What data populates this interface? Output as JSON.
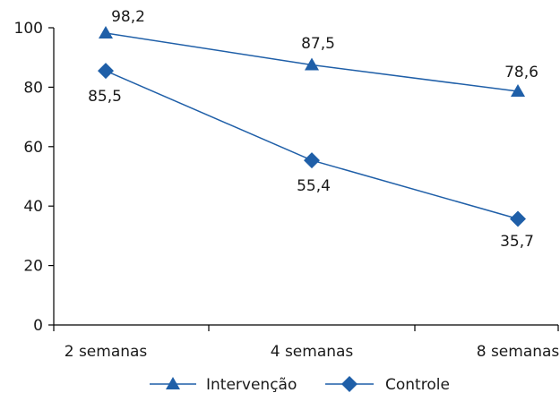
{
  "chart_data": {
    "type": "line",
    "title": "",
    "xlabel": "",
    "ylabel": "",
    "categories": [
      "2 semanas",
      "4 semanas",
      "8 semanas"
    ],
    "ylim": [
      0,
      100
    ],
    "yticks": [
      "0",
      "20",
      "40",
      "60",
      "80",
      "100"
    ],
    "grid": false,
    "legend_position": "bottom-center",
    "series": [
      {
        "name": "Intervenção",
        "marker": "triangle",
        "values": [
          98.2,
          87.5,
          78.6
        ],
        "labels": [
          "98,2",
          "87,5",
          "78,6"
        ]
      },
      {
        "name": "Controle",
        "marker": "diamond",
        "values": [
          85.5,
          55.4,
          35.7
        ],
        "labels": [
          "85,5",
          "55,4",
          "35,7"
        ]
      }
    ],
    "colors": {
      "series": "#1f5fa8",
      "axis": "#000000",
      "text": "#1a1a1a"
    }
  }
}
